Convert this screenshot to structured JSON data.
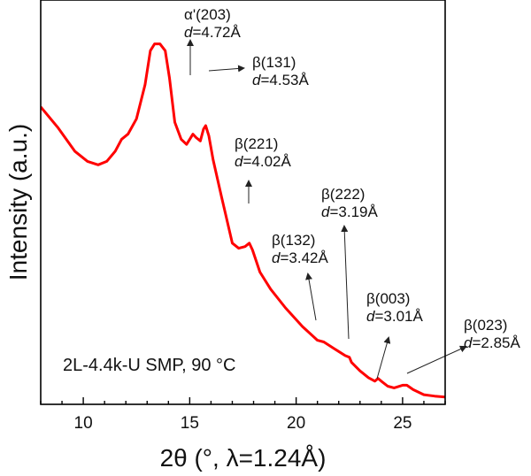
{
  "chart_data": {
    "type": "line",
    "xlabel": "2θ (°, λ=1.24Å)",
    "ylabel": "Intensity (a.u.)",
    "sample_label": "2L-4.4k-U SMP, 90 °C",
    "xlim": [
      8,
      27
    ],
    "x_ticks": [
      10,
      15,
      20,
      25
    ],
    "y_scale": "arbitrary units (no tick labels)",
    "ylim": [
      0,
      100
    ],
    "line_color": "#ff0000",
    "series": [
      {
        "x": [
          8.0,
          8.8,
          9.6,
          10.2,
          10.7,
          11.1,
          11.5,
          11.8,
          12.1,
          12.5,
          12.9,
          13.15,
          13.35,
          13.6,
          13.85,
          14.05,
          14.3,
          14.6,
          14.85,
          15.0,
          15.15,
          15.3,
          15.5,
          15.65,
          15.75,
          15.9,
          16.1,
          16.5,
          17.0,
          17.3,
          17.6,
          17.8,
          17.95,
          18.3,
          18.8,
          19.5,
          20.3,
          21.0,
          21.3,
          21.8,
          22.3,
          22.5,
          22.6,
          23.0,
          23.4,
          23.7,
          23.85,
          24.0,
          24.3,
          24.6,
          25.0,
          25.2,
          25.5,
          26.0,
          26.5,
          27.0
        ],
        "y": [
          85.5,
          79.5,
          72.5,
          69.5,
          68.5,
          69.5,
          72.5,
          76.0,
          77.5,
          82.0,
          92.0,
          102.0,
          104.0,
          104.0,
          102.0,
          94.0,
          81.0,
          76.0,
          74.5,
          76.0,
          77.5,
          76.5,
          75.5,
          79.0,
          80.0,
          77.0,
          70.0,
          59.0,
          45.5,
          44.0,
          44.5,
          45.5,
          43.5,
          37.0,
          32.0,
          26.5,
          21.0,
          17.0,
          16.5,
          14.5,
          12.5,
          12.0,
          10.5,
          8.0,
          6.0,
          5.0,
          5.8,
          5.0,
          3.5,
          3.0,
          3.8,
          3.8,
          2.5,
          1.0,
          0.6,
          0.3
        ]
      }
    ],
    "annotations": [
      {
        "phase": "α'(203)",
        "d": "d=4.72Å",
        "peak_x": 15.05,
        "peak_y": 77.5
      },
      {
        "phase": "β(131)",
        "d": "d=4.53Å",
        "peak_x": 15.75,
        "peak_y": 80.5
      },
      {
        "phase": "β(221)",
        "d": "d=4.02Å",
        "peak_x": 17.8,
        "peak_y": 46.0
      },
      {
        "phase": "β(132)",
        "d": "d=3.42Å",
        "peak_x": 21.0,
        "peak_y": 16.8
      },
      {
        "phase": "β(222)",
        "d": "d=3.19Å",
        "peak_x": 22.45,
        "peak_y": 12.0
      },
      {
        "phase": "β(003)",
        "d": "d=3.01Å",
        "peak_x": 23.8,
        "peak_y": 5.6
      },
      {
        "phase": "β(023)",
        "d": "d=2.85Å",
        "peak_x": 25.1,
        "peak_y": 4.0
      }
    ]
  }
}
